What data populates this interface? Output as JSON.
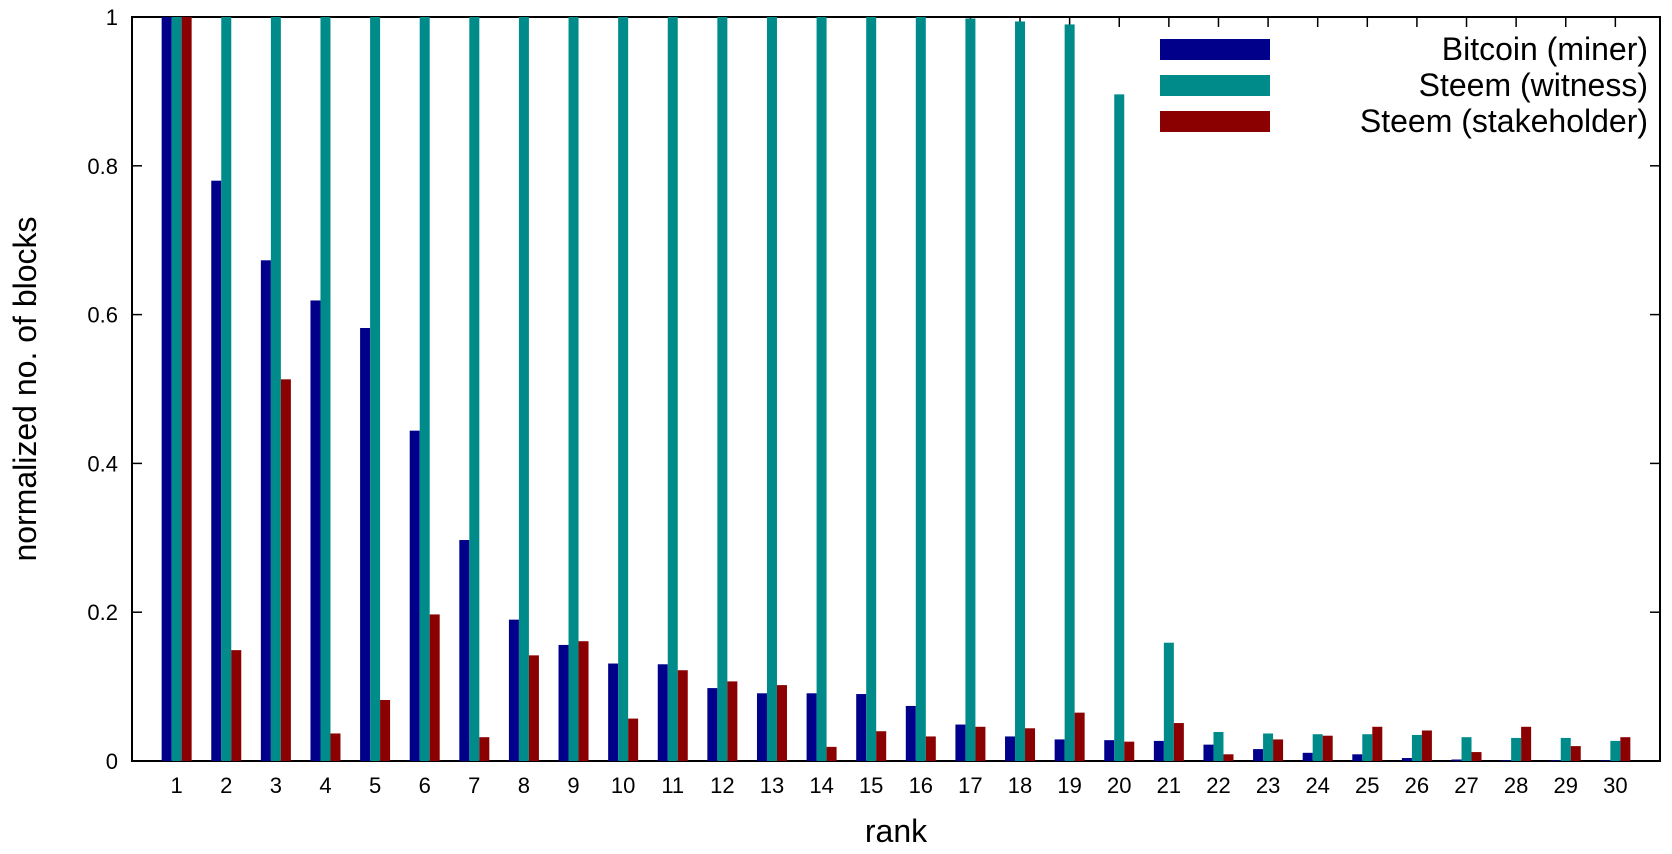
{
  "chart_data": {
    "type": "bar",
    "title": "",
    "xlabel": "rank",
    "ylabel": "normalized no. of blocks",
    "ylim": [
      0,
      1
    ],
    "yticks": [
      "0",
      "0.2",
      "0.4",
      "0.6",
      "0.8",
      "1"
    ],
    "grid": false,
    "legend_position": "top-right",
    "categories": [
      "1",
      "2",
      "3",
      "4",
      "5",
      "6",
      "7",
      "8",
      "9",
      "10",
      "11",
      "12",
      "13",
      "14",
      "15",
      "16",
      "17",
      "18",
      "19",
      "20",
      "21",
      "22",
      "23",
      "24",
      "25",
      "26",
      "27",
      "28",
      "29",
      "30"
    ],
    "series": [
      {
        "name": "Bitcoin (miner)",
        "color": "#00008b",
        "values": [
          1.0,
          0.78,
          0.673,
          0.619,
          0.582,
          0.444,
          0.297,
          0.19,
          0.156,
          0.131,
          0.13,
          0.098,
          0.091,
          0.091,
          0.09,
          0.074,
          0.049,
          0.033,
          0.029,
          0.028,
          0.027,
          0.022,
          0.016,
          0.011,
          0.009,
          0.004,
          0.002,
          0.001,
          0.001,
          0.001
        ]
      },
      {
        "name": "Steem (witness)",
        "color": "#008b8b",
        "values": [
          1.0,
          1.0,
          1.0,
          1.0,
          1.0,
          1.0,
          1.0,
          1.0,
          1.0,
          1.0,
          1.0,
          1.0,
          1.0,
          1.0,
          1.0,
          1.0,
          0.998,
          0.994,
          0.99,
          0.896,
          0.159,
          0.039,
          0.037,
          0.036,
          0.036,
          0.035,
          0.032,
          0.031,
          0.031,
          0.027
        ]
      },
      {
        "name": "Steem (stakeholder)",
        "color": "#8b0000",
        "values": [
          1.0,
          0.149,
          0.513,
          0.037,
          0.082,
          0.197,
          0.032,
          0.142,
          0.161,
          0.057,
          0.122,
          0.107,
          0.102,
          0.019,
          0.04,
          0.033,
          0.046,
          0.044,
          0.065,
          0.026,
          0.051,
          0.009,
          0.029,
          0.034,
          0.046,
          0.041,
          0.012,
          0.046,
          0.02,
          0.032
        ]
      }
    ]
  }
}
